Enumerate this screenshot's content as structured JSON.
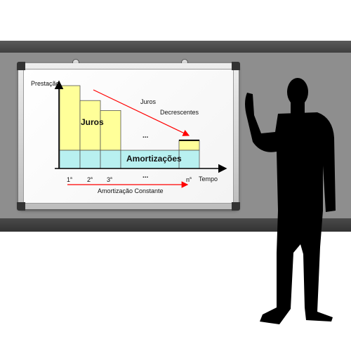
{
  "diagram": {
    "y_axis_label": "Prestação",
    "x_axis_label": "Tempo",
    "interest_label": "Juros",
    "amortization_label": "Amortizações",
    "decreasing_interest_label_line1": "Juros",
    "decreasing_interest_label_line2": "Decrescentes",
    "ellipsis_middle": "...",
    "ellipsis_axis": "...",
    "constant_amortization_label": "Amortização Constante",
    "ticks": [
      {
        "num": "1",
        "sup": "a"
      },
      {
        "num": "2",
        "sup": "a"
      },
      {
        "num": "3",
        "sup": "a"
      },
      {
        "num": "n",
        "sup": "a"
      }
    ],
    "colors": {
      "interest_fill": "#ffff99",
      "amortization_fill": "#b8f0f0",
      "arrow": "#ff0000",
      "axis": "#000000",
      "bar_edge": "#555555"
    },
    "bars": [
      {
        "period": "1a",
        "total": 1.0,
        "amortization": 0.22
      },
      {
        "period": "2a",
        "total": 0.82,
        "amortization": 0.22
      },
      {
        "period": "3a",
        "total": 0.7,
        "amortization": 0.22
      },
      {
        "period": "na",
        "total": 0.34,
        "amortization": 0.22
      }
    ]
  }
}
